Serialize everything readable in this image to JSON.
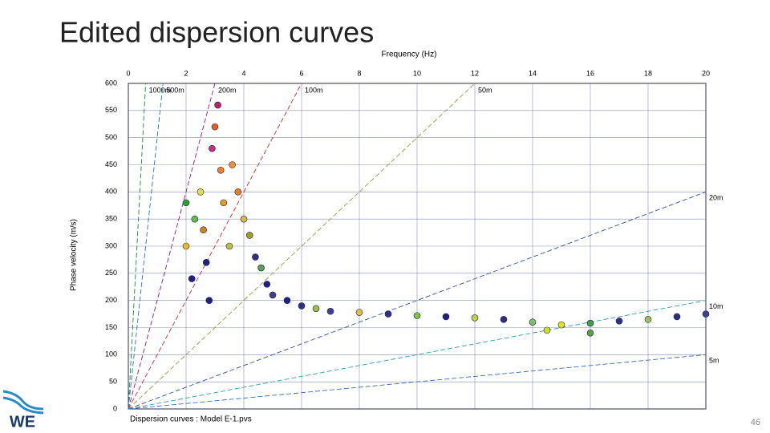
{
  "title": "Edited dispersion curves",
  "page_number": "46",
  "logo": "WE",
  "chart_data": {
    "type": "scatter",
    "x_label": "Frequency (Hz)",
    "y_label": "Phase velocity (m/s)",
    "caption": "Dispersion curves : Model E-1.pvs",
    "xlim": [
      0,
      20
    ],
    "ylim": [
      0,
      600
    ],
    "xticks": [
      0,
      2,
      4,
      6,
      8,
      10,
      12,
      14,
      16,
      18,
      20
    ],
    "yticks": [
      0,
      50,
      100,
      150,
      200,
      250,
      300,
      350,
      400,
      450,
      500,
      550,
      600
    ],
    "grid": true,
    "reference_lines": [
      {
        "value": 1000,
        "label": "1000m",
        "color": "#1a8a3a"
      },
      {
        "value": 500,
        "label": "500m",
        "color": "#2a6fd0"
      },
      {
        "value": 200,
        "label": "200m",
        "color": "#8a1a8a"
      },
      {
        "value": 100,
        "label": "100m",
        "color": "#c83030"
      },
      {
        "value": 50,
        "label": "50m",
        "color": "#9a9a40"
      },
      {
        "value": 20,
        "label": "20m",
        "color": "#3050a0"
      },
      {
        "value": 10,
        "label": "10m",
        "color": "#30a0a0"
      },
      {
        "value": 5,
        "label": "5m",
        "color": "#3070c0"
      }
    ],
    "x": [
      2.0,
      2.0,
      2.2,
      2.3,
      2.5,
      2.6,
      2.7,
      2.8,
      2.9,
      3.0,
      3.1,
      3.2,
      3.3,
      3.5,
      3.6,
      3.8,
      4.0,
      4.2,
      4.4,
      4.6,
      4.8,
      5.0,
      5.5,
      6.0,
      6.5,
      7.0,
      8.0,
      9.0,
      10,
      11,
      12,
      13,
      14,
      15,
      16,
      17,
      18,
      19,
      20,
      14.5,
      16
    ],
    "values": [
      380,
      300,
      240,
      350,
      400,
      330,
      270,
      200,
      480,
      520,
      560,
      440,
      380,
      300,
      450,
      400,
      350,
      320,
      280,
      260,
      230,
      210,
      200,
      190,
      185,
      180,
      178,
      175,
      172,
      170,
      168,
      165,
      160,
      155,
      158,
      162,
      165,
      170,
      175,
      145,
      140
    ],
    "colors": [
      "#30a030",
      "#e0c020",
      "#202080",
      "#60c040",
      "#e0e040",
      "#d08020",
      "#202080",
      "#202080",
      "#c03080",
      "#e06020",
      "#c02060",
      "#f08020",
      "#e0a020",
      "#c0c040",
      "#f09030",
      "#e08020",
      "#d0c040",
      "#a0a020",
      "#303080",
      "#60a040",
      "#202080",
      "#404090",
      "#202080",
      "#303080",
      "#a0c040",
      "#404090",
      "#e0c040",
      "#303080",
      "#80c040",
      "#202080",
      "#c0d040",
      "#303080",
      "#80c060",
      "#e0e020",
      "#40a040",
      "#303080",
      "#a0c060",
      "#303080",
      "#404090",
      "#d0e020",
      "#60a040"
    ]
  }
}
